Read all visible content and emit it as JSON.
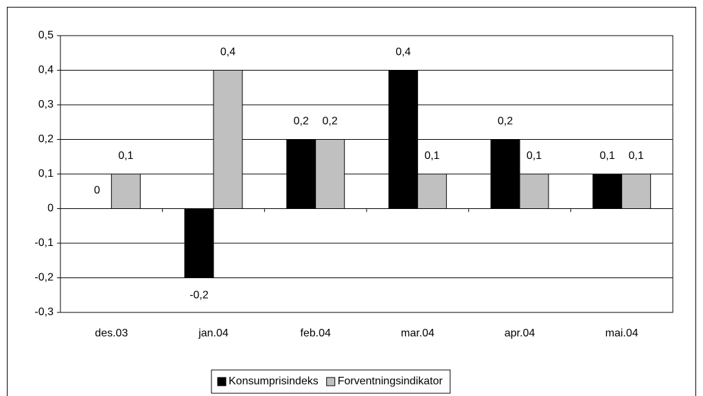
{
  "chart_data": {
    "type": "bar",
    "categories": [
      "des.03",
      "jan.04",
      "feb.04",
      "mar.04",
      "apr.04",
      "mai.04"
    ],
    "series": [
      {
        "name": "Konsumprisindeks",
        "color": "#000000",
        "values": [
          0,
          -0.2,
          0.2,
          0.4,
          0.2,
          0.1
        ],
        "value_labels": [
          "0",
          "-0,2",
          "0,2",
          "0,4",
          "0,2",
          "0,1"
        ]
      },
      {
        "name": "Forventningsindikator",
        "color": "#c0c0c0",
        "values": [
          0.1,
          0.4,
          0.2,
          0.1,
          0.1,
          0.1
        ],
        "value_labels": [
          "0,1",
          "0,4",
          "0,2",
          "0,1",
          "0,1",
          "0,1"
        ]
      }
    ],
    "ylim": [
      -0.3,
      0.5
    ],
    "yticks": [
      {
        "value": -0.3,
        "label": "-0,3"
      },
      {
        "value": -0.2,
        "label": "-0,2"
      },
      {
        "value": -0.1,
        "label": "-0,1"
      },
      0,
      {
        "value": 0.1,
        "label": "0,1"
      },
      {
        "value": 0.2,
        "label": "0,2"
      },
      {
        "value": 0.3,
        "label": "0,3"
      },
      {
        "value": 0.4,
        "label": "0,4"
      },
      {
        "value": 0.5,
        "label": "0,5"
      }
    ],
    "grid": true,
    "legend": "bottom"
  }
}
